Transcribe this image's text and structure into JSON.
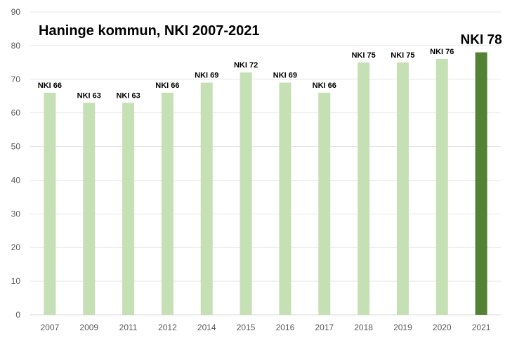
{
  "chart_data": {
    "type": "bar",
    "title": "Haninge kommun, NKI 2007-2021",
    "categories": [
      "2007",
      "2009",
      "2011",
      "2012",
      "2014",
      "2015",
      "2016",
      "2017",
      "2018",
      "2019",
      "2020",
      "2021"
    ],
    "values": [
      66,
      63,
      63,
      66,
      69,
      72,
      69,
      66,
      75,
      75,
      76,
      78
    ],
    "data_labels": [
      "NKI 66",
      "NKI 63",
      "NKI 63",
      "NKI 66",
      "NKI 69",
      "NKI 72",
      "NKI 69",
      "NKI 66",
      "NKI 75",
      "NKI 75",
      "NKI 76",
      "NKI 78"
    ],
    "highlight_index": 11,
    "ylim": [
      0,
      90
    ],
    "yticks": [
      0,
      10,
      20,
      30,
      40,
      50,
      60,
      70,
      80,
      90
    ],
    "grid": true,
    "legend": "none",
    "colors": {
      "bar": "#c5e0b4",
      "highlight": "#548235",
      "grid": "#e6e6e6",
      "tick_text": "#595959"
    }
  }
}
